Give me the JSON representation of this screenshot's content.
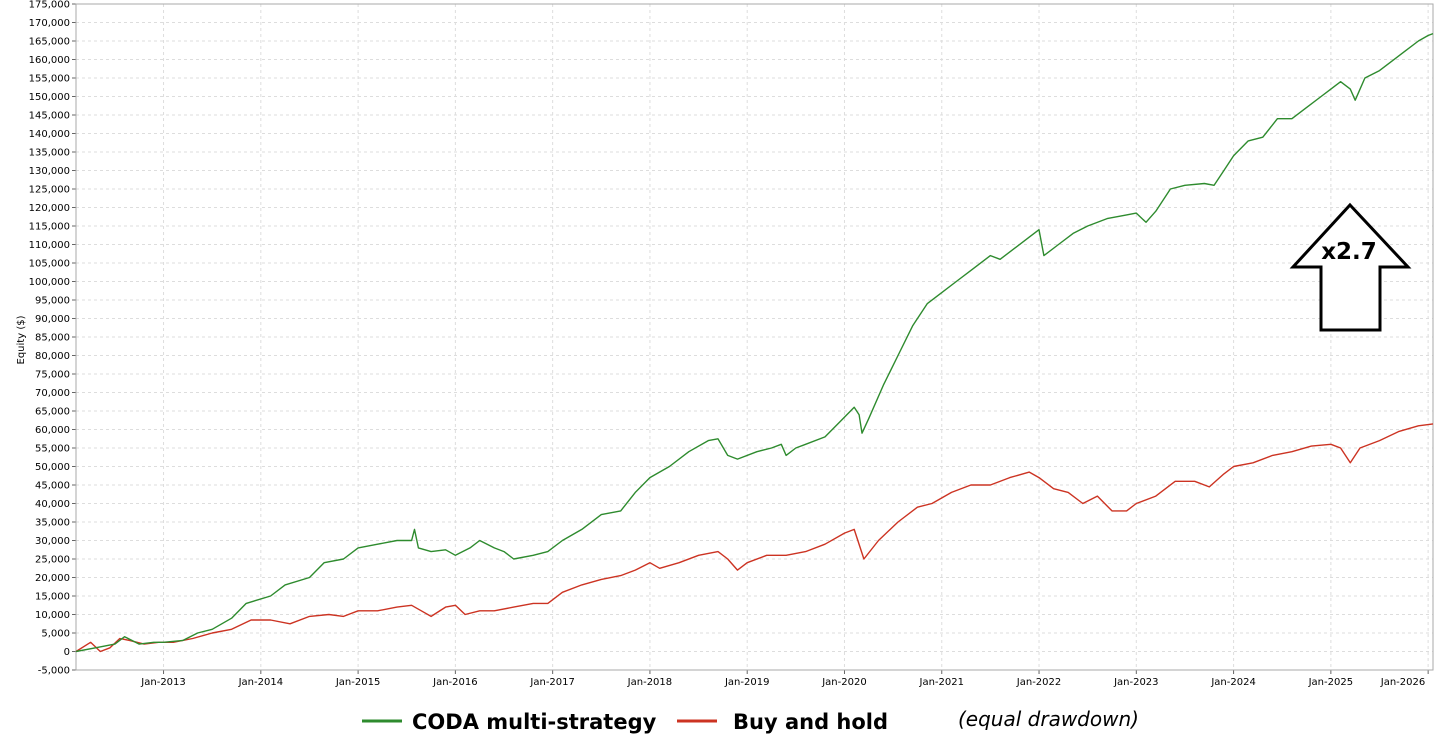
{
  "chart_data": {
    "type": "line",
    "title": "",
    "xlabel": "",
    "ylabel": "Equity ($)",
    "ylim": [
      -5000,
      175000
    ],
    "yticks": [
      -5000,
      0,
      5000,
      10000,
      15000,
      20000,
      25000,
      30000,
      35000,
      40000,
      45000,
      50000,
      55000,
      60000,
      65000,
      70000,
      75000,
      80000,
      85000,
      90000,
      95000,
      100000,
      105000,
      110000,
      115000,
      120000,
      125000,
      130000,
      135000,
      140000,
      145000,
      150000,
      155000,
      160000,
      165000,
      170000,
      175000
    ],
    "ytick_labels": [
      "-5,000",
      "0",
      "5,000",
      "10,000",
      "15,000",
      "20,000",
      "25,000",
      "30,000",
      "35,000",
      "40,000",
      "45,000",
      "50,000",
      "55,000",
      "60,000",
      "65,000",
      "70,000",
      "75,000",
      "80,000",
      "85,000",
      "90,000",
      "95,000",
      "100,000",
      "105,000",
      "110,000",
      "115,000",
      "120,000",
      "125,000",
      "130,000",
      "135,000",
      "140,000",
      "145,000",
      "150,000",
      "155,000",
      "160,000",
      "165,000",
      "170,000",
      "175,000"
    ],
    "xlim": [
      2012.1,
      2026.05
    ],
    "xtick_values": [
      2013,
      2014,
      2015,
      2016,
      2017,
      2018,
      2019,
      2020,
      2021,
      2022,
      2023,
      2024,
      2025,
      2026
    ],
    "xtick_labels": [
      "Jan-2013",
      "Jan-2014",
      "Jan-2015",
      "Jan-2016",
      "Jan-2017",
      "Jan-2018",
      "Jan-2019",
      "Jan-2020",
      "Jan-2021",
      "Jan-2022",
      "Jan-2023",
      "Jan-2024",
      "Jan-2025",
      "Jan-2026"
    ],
    "grid": true,
    "legend_position": "bottom",
    "series": [
      {
        "name": "CODA multi-strategy",
        "color": "#2e8b2e",
        "points": [
          [
            2012.1,
            0
          ],
          [
            2012.3,
            1000
          ],
          [
            2012.5,
            2000
          ],
          [
            2012.6,
            4000
          ],
          [
            2012.75,
            2000
          ],
          [
            2012.9,
            2500
          ],
          [
            2013.0,
            2500
          ],
          [
            2013.2,
            3000
          ],
          [
            2013.35,
            5000
          ],
          [
            2013.5,
            6000
          ],
          [
            2013.7,
            9000
          ],
          [
            2013.85,
            13000
          ],
          [
            2014.1,
            15000
          ],
          [
            2014.25,
            18000
          ],
          [
            2014.5,
            20000
          ],
          [
            2014.65,
            24000
          ],
          [
            2014.85,
            25000
          ],
          [
            2015.0,
            28000
          ],
          [
            2015.2,
            29000
          ],
          [
            2015.4,
            30000
          ],
          [
            2015.55,
            30000
          ],
          [
            2015.58,
            33000
          ],
          [
            2015.62,
            28000
          ],
          [
            2015.75,
            27000
          ],
          [
            2015.9,
            27500
          ],
          [
            2016.0,
            26000
          ],
          [
            2016.15,
            28000
          ],
          [
            2016.25,
            30000
          ],
          [
            2016.4,
            28000
          ],
          [
            2016.5,
            27000
          ],
          [
            2016.6,
            25000
          ],
          [
            2016.8,
            26000
          ],
          [
            2016.95,
            27000
          ],
          [
            2017.1,
            30000
          ],
          [
            2017.3,
            33000
          ],
          [
            2017.5,
            37000
          ],
          [
            2017.7,
            38000
          ],
          [
            2017.85,
            43000
          ],
          [
            2018.0,
            47000
          ],
          [
            2018.2,
            50000
          ],
          [
            2018.4,
            54000
          ],
          [
            2018.6,
            57000
          ],
          [
            2018.7,
            57500
          ],
          [
            2018.8,
            53000
          ],
          [
            2018.9,
            52000
          ],
          [
            2019.1,
            54000
          ],
          [
            2019.25,
            55000
          ],
          [
            2019.35,
            56000
          ],
          [
            2019.4,
            53000
          ],
          [
            2019.5,
            55000
          ],
          [
            2019.6,
            56000
          ],
          [
            2019.8,
            58000
          ],
          [
            2019.95,
            62000
          ],
          [
            2020.1,
            66000
          ],
          [
            2020.15,
            64000
          ],
          [
            2020.18,
            59000
          ],
          [
            2020.25,
            63000
          ],
          [
            2020.4,
            72000
          ],
          [
            2020.55,
            80000
          ],
          [
            2020.7,
            88000
          ],
          [
            2020.85,
            94000
          ],
          [
            2021.0,
            97000
          ],
          [
            2021.15,
            100000
          ],
          [
            2021.3,
            103000
          ],
          [
            2021.5,
            107000
          ],
          [
            2021.6,
            106000
          ],
          [
            2021.75,
            109000
          ],
          [
            2021.9,
            112000
          ],
          [
            2022.0,
            114000
          ],
          [
            2022.05,
            107000
          ],
          [
            2022.2,
            110000
          ],
          [
            2022.35,
            113000
          ],
          [
            2022.5,
            115000
          ],
          [
            2022.7,
            117000
          ],
          [
            2022.9,
            118000
          ],
          [
            2023.0,
            118500
          ],
          [
            2023.1,
            116000
          ],
          [
            2023.2,
            119000
          ],
          [
            2023.35,
            125000
          ],
          [
            2023.5,
            126000
          ],
          [
            2023.7,
            126500
          ],
          [
            2023.8,
            126000
          ],
          [
            2023.9,
            130000
          ],
          [
            2024.0,
            134000
          ],
          [
            2024.15,
            138000
          ],
          [
            2024.3,
            139000
          ],
          [
            2024.45,
            144000
          ],
          [
            2024.6,
            144000
          ],
          [
            2024.75,
            147000
          ],
          [
            2024.9,
            150000
          ],
          [
            2025.0,
            152000
          ],
          [
            2025.1,
            154000
          ],
          [
            2025.2,
            152000
          ],
          [
            2025.25,
            149000
          ],
          [
            2025.35,
            155000
          ],
          [
            2025.5,
            157000
          ],
          [
            2025.6,
            159000
          ],
          [
            2025.75,
            162000
          ],
          [
            2025.9,
            165000
          ],
          [
            2026.0,
            166500
          ],
          [
            2026.05,
            167000
          ]
        ]
      },
      {
        "name": "Buy and hold",
        "color": "#cc3322",
        "points": [
          [
            2012.1,
            0
          ],
          [
            2012.25,
            2500
          ],
          [
            2012.35,
            0
          ],
          [
            2012.45,
            1000
          ],
          [
            2012.55,
            3500
          ],
          [
            2012.65,
            3000
          ],
          [
            2012.8,
            2000
          ],
          [
            2012.95,
            2500
          ],
          [
            2013.1,
            2500
          ],
          [
            2013.3,
            3500
          ],
          [
            2013.5,
            5000
          ],
          [
            2013.7,
            6000
          ],
          [
            2013.9,
            8500
          ],
          [
            2014.1,
            8500
          ],
          [
            2014.3,
            7500
          ],
          [
            2014.5,
            9500
          ],
          [
            2014.7,
            10000
          ],
          [
            2014.85,
            9500
          ],
          [
            2015.0,
            11000
          ],
          [
            2015.2,
            11000
          ],
          [
            2015.4,
            12000
          ],
          [
            2015.55,
            12500
          ],
          [
            2015.65,
            11000
          ],
          [
            2015.75,
            9500
          ],
          [
            2015.9,
            12000
          ],
          [
            2016.0,
            12500
          ],
          [
            2016.1,
            10000
          ],
          [
            2016.25,
            11000
          ],
          [
            2016.4,
            11000
          ],
          [
            2016.6,
            12000
          ],
          [
            2016.8,
            13000
          ],
          [
            2016.95,
            13000
          ],
          [
            2017.1,
            16000
          ],
          [
            2017.3,
            18000
          ],
          [
            2017.5,
            19500
          ],
          [
            2017.7,
            20500
          ],
          [
            2017.85,
            22000
          ],
          [
            2018.0,
            24000
          ],
          [
            2018.1,
            22500
          ],
          [
            2018.3,
            24000
          ],
          [
            2018.5,
            26000
          ],
          [
            2018.7,
            27000
          ],
          [
            2018.8,
            25000
          ],
          [
            2018.9,
            22000
          ],
          [
            2019.0,
            24000
          ],
          [
            2019.2,
            26000
          ],
          [
            2019.4,
            26000
          ],
          [
            2019.6,
            27000
          ],
          [
            2019.8,
            29000
          ],
          [
            2020.0,
            32000
          ],
          [
            2020.1,
            33000
          ],
          [
            2020.2,
            25000
          ],
          [
            2020.35,
            30000
          ],
          [
            2020.55,
            35000
          ],
          [
            2020.75,
            39000
          ],
          [
            2020.9,
            40000
          ],
          [
            2021.1,
            43000
          ],
          [
            2021.3,
            45000
          ],
          [
            2021.5,
            45000
          ],
          [
            2021.7,
            47000
          ],
          [
            2021.9,
            48500
          ],
          [
            2022.0,
            47000
          ],
          [
            2022.15,
            44000
          ],
          [
            2022.3,
            43000
          ],
          [
            2022.45,
            40000
          ],
          [
            2022.6,
            42000
          ],
          [
            2022.75,
            38000
          ],
          [
            2022.9,
            38000
          ],
          [
            2023.0,
            40000
          ],
          [
            2023.2,
            42000
          ],
          [
            2023.4,
            46000
          ],
          [
            2023.6,
            46000
          ],
          [
            2023.75,
            44500
          ],
          [
            2023.9,
            48000
          ],
          [
            2024.0,
            50000
          ],
          [
            2024.2,
            51000
          ],
          [
            2024.4,
            53000
          ],
          [
            2024.6,
            54000
          ],
          [
            2024.8,
            55500
          ],
          [
            2025.0,
            56000
          ],
          [
            2025.1,
            55000
          ],
          [
            2025.2,
            51000
          ],
          [
            2025.3,
            55000
          ],
          [
            2025.5,
            57000
          ],
          [
            2025.7,
            59500
          ],
          [
            2025.9,
            61000
          ],
          [
            2026.05,
            61500
          ]
        ]
      }
    ],
    "annotation": "x2.7",
    "note": "(equal drawdown)"
  },
  "colors": {
    "grid": "#dddddd",
    "axis": "#aaaaaa"
  }
}
